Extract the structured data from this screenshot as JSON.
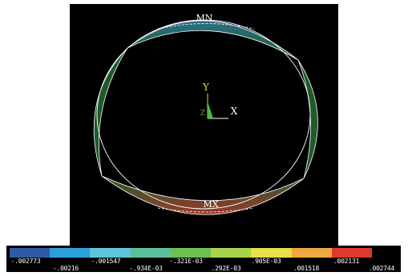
{
  "viewport": {
    "labels": {
      "min": "MN",
      "max": "MX",
      "axis_y": "Y",
      "axis_x": "X",
      "axis_z": "Z"
    }
  },
  "colors": {
    "background": "#000000",
    "outline": "#ffffff",
    "ring_main": "#1f5a2a",
    "ring_min_tone": "#2d6f86",
    "ring_max_tone": "#9b3a2a",
    "axis_y": "#e6e020",
    "axis_x": "#ffffff",
    "axis_z": "#49b84a"
  },
  "legend": {
    "swatches": [
      "#2f5aa8",
      "#2aa0dc",
      "#5ec5d8",
      "#5abf9a",
      "#6ec04f",
      "#a8d44a",
      "#e6e04a",
      "#f0a840",
      "#e0392b"
    ],
    "values": [
      "-.002773",
      "-.00216",
      "-.001547",
      "-.934E-03",
      "-.321E-03",
      ".292E-03",
      ".905E-03",
      ".001518",
      ".002131",
      ".002744"
    ]
  }
}
